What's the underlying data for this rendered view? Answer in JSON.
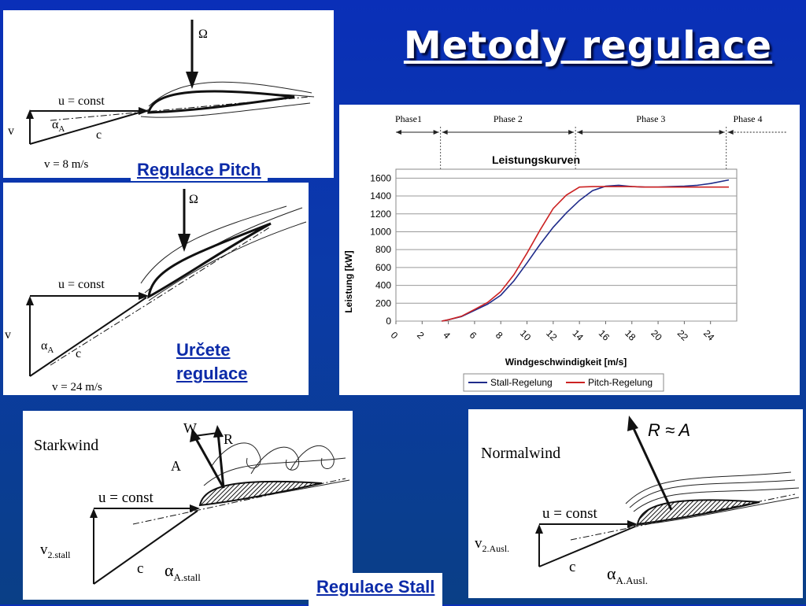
{
  "title": "Metody regulace",
  "labels": {
    "pitch": "Regulace Pitch",
    "stall_control": "Určete regulace",
    "stall": "Regulace Stall"
  },
  "diagram1": {
    "omega": "Ω",
    "u_const": "u = const",
    "v": "v",
    "alpha": "α",
    "alpha_sub": "A",
    "c": "c",
    "speed": "v = 8 m/s"
  },
  "diagram2": {
    "omega": "Ω",
    "u_const": "u = const",
    "v": "v",
    "alpha": "α",
    "alpha_sub": "A",
    "c": "c",
    "speed": "v = 24 m/s"
  },
  "diagram3": {
    "title": "Starkwind",
    "w": "W",
    "r": "R",
    "a": "A",
    "u_const": "u = const",
    "v": "v",
    "v_sub": "2.stall",
    "c": "c",
    "alpha": "α",
    "alpha_sub": "A.stall"
  },
  "diagram4": {
    "title": "Normalwind",
    "r_approx": "R ≈ A",
    "u_const": "u = const",
    "v": "v",
    "v_sub": "2.Ausl.",
    "c": "c",
    "alpha": "α",
    "alpha_sub": "A.Ausl."
  },
  "colors": {
    "stall": "#1f2b8a",
    "pitch": "#cc2222",
    "background": "#0a2fb8"
  },
  "chart_data": {
    "type": "line",
    "title": "Leistungskurven",
    "xlabel": "Windgeschwindigkeit [m/s]",
    "ylabel": "Leistung [kW]",
    "xlim": [
      0,
      26
    ],
    "ylim": [
      0,
      1700
    ],
    "xticks": [
      "0",
      "2",
      "4",
      "6",
      "8",
      "10",
      "12",
      "14",
      "16",
      "18",
      "20",
      "22",
      "24"
    ],
    "yticks": [
      "0",
      "200",
      "400",
      "600",
      "800",
      "1000",
      "1200",
      "1400",
      "1600"
    ],
    "phases": [
      {
        "label": "Phase1",
        "from": 0,
        "to": 3.4
      },
      {
        "label": "Phase 2",
        "from": 3.4,
        "to": 13.7
      },
      {
        "label": "Phase 3",
        "from": 13.7,
        "to": 25.2
      },
      {
        "label": "Phase 4",
        "from": 25.2,
        "to": 30
      }
    ],
    "series": [
      {
        "name": "Stall-Regelung",
        "x": [
          3.5,
          4,
          5,
          6,
          7,
          8,
          9,
          10,
          11,
          12,
          13,
          14,
          15,
          16,
          17,
          18,
          19,
          20,
          21,
          22,
          23,
          24,
          25.4
        ],
        "y": [
          0,
          15,
          50,
          120,
          190,
          290,
          450,
          650,
          860,
          1050,
          1210,
          1350,
          1460,
          1510,
          1520,
          1505,
          1500,
          1500,
          1505,
          1510,
          1520,
          1540,
          1580
        ]
      },
      {
        "name": "Pitch-Regelung",
        "x": [
          3.5,
          4,
          5,
          6,
          7,
          8,
          9,
          10,
          11,
          12,
          13,
          14,
          15,
          16,
          17,
          18,
          19,
          20,
          21,
          22,
          23,
          24,
          25.4
        ],
        "y": [
          0,
          15,
          55,
          130,
          210,
          330,
          520,
          760,
          1020,
          1260,
          1410,
          1500,
          1505,
          1505,
          1505,
          1505,
          1500,
          1500,
          1500,
          1500,
          1500,
          1500,
          1500
        ]
      }
    ],
    "legend": "bottom",
    "grid": true
  }
}
